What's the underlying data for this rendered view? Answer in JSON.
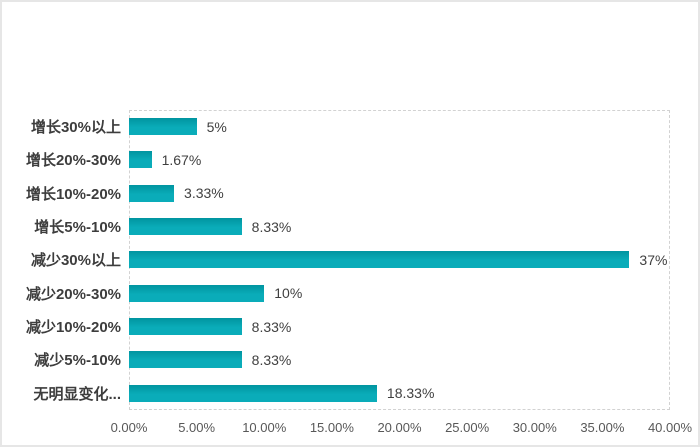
{
  "panel": {
    "background": "#ffffff",
    "border_color": "#e6e6e6",
    "plot_border_style": "dashed",
    "plot_border_color": "#d2d2d2"
  },
  "chart_data": {
    "type": "bar",
    "orientation": "horizontal",
    "title": "",
    "xlabel": "",
    "ylabel": "",
    "categories": [
      "增长30%以上",
      "增长20%-30%",
      "增长10%-20%",
      "增长5%-10%",
      "减少30%以上",
      "减少20%-30%",
      "减少10%-20%",
      "减少5%-10%",
      "无明显变化..."
    ],
    "values": [
      5,
      1.67,
      3.33,
      8.33,
      37,
      10,
      8.33,
      8.33,
      18.33
    ],
    "value_labels": [
      "5%",
      "1.67%",
      "3.33%",
      "8.33%",
      "37%",
      "10%",
      "8.33%",
      "8.33%",
      "18.33%"
    ],
    "xlim": [
      0,
      40
    ],
    "xticks": [
      "0.00%",
      "5.00%",
      "10.00%",
      "15.00%",
      "20.00%",
      "25.00%",
      "30.00%",
      "35.00%",
      "40.00%"
    ],
    "bar_color": "#00a9b6",
    "grid": false,
    "legend": "none"
  }
}
